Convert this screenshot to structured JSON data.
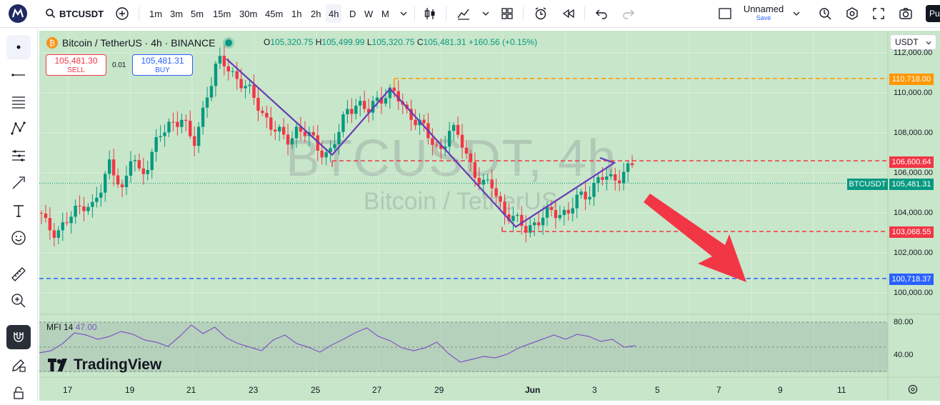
{
  "toolbar": {
    "symbol": "BTCUSDT",
    "timeframes": [
      "1m",
      "3m",
      "5m",
      "15m",
      "30m",
      "45m",
      "1h",
      "2h",
      "4h",
      "D",
      "W",
      "M"
    ],
    "active_timeframe": "4h",
    "layout_name": "Unnamed",
    "save_label": "Save",
    "publish_label": "Pu"
  },
  "legend": {
    "title": "Bitcoin / TetherUS · 4h · BINANCE",
    "o_label": "O",
    "o": "105,320.75",
    "h_label": "H",
    "h": "105,499.99",
    "l_label": "L",
    "l": "105,320.75",
    "c_label": "C",
    "c": "105,481.31",
    "change": "+160.56 (+0.15%)"
  },
  "trade": {
    "sell_price": "105,481.30",
    "sell_label": "SELL",
    "buy_price": "105,481.31",
    "buy_label": "BUY",
    "quantity": "0.01"
  },
  "watermark": {
    "symbol": "BTCUSDT, 4h",
    "name": "Bitcoin / TetherUS"
  },
  "price_axis": {
    "currency": "USDT",
    "labels": [
      "112,000.00",
      "110,000.00",
      "108,000.00",
      "106,000.00",
      "104,000.00",
      "102,000.00",
      "100,000.00"
    ],
    "tags": [
      {
        "text": "110,718.00",
        "color": "#ff9800"
      },
      {
        "text": "106,600.64",
        "color": "#f23645"
      },
      {
        "text": "105,481.31",
        "color": "#089981"
      },
      {
        "text": "103,068.55",
        "color": "#f23645"
      },
      {
        "text": "100,718.37",
        "color": "#2962ff"
      }
    ],
    "symbol_tag": "BTCUSDT"
  },
  "indicator": {
    "name": "MFI 14",
    "value": "47.00",
    "levels": [
      "80.00",
      "40.00"
    ]
  },
  "branding": "TradingView",
  "time_axis": [
    "17",
    "19",
    "21",
    "23",
    "25",
    "27",
    "29",
    "Jun",
    "3",
    "5",
    "7",
    "9",
    "11"
  ],
  "colors": {
    "up": "#089981",
    "down": "#f23645",
    "zigzag": "#673ab7",
    "background": "#c8e6c9",
    "mfi": "#7e57c2"
  },
  "chart_data": {
    "type": "candlestick",
    "title": "Bitcoin / TetherUS · 4h · BINANCE",
    "y_range": [
      99400,
      112200
    ],
    "horizontal_levels": [
      110718.0,
      106600.64,
      103068.55,
      100718.37
    ],
    "last_price": 105481.31,
    "zigzag_points": [
      {
        "x": "May 21",
        "y": 111700
      },
      {
        "x": "May 25",
        "y": 106900
      },
      {
        "x": "May 27",
        "y": 110200
      },
      {
        "x": "May 30",
        "y": 103300
      },
      {
        "x": "Jun 3",
        "y": 106500
      }
    ],
    "mfi_values": [
      37,
      40,
      50,
      65,
      62,
      56,
      60,
      67,
      63,
      55,
      52,
      46,
      60,
      76,
      64,
      73,
      58,
      50,
      45,
      40,
      55,
      62,
      50,
      45,
      38,
      48,
      56,
      65,
      72,
      60,
      54,
      44,
      40,
      44,
      52,
      36,
      24,
      28,
      32,
      30,
      35,
      44,
      50,
      56,
      62,
      56,
      63,
      60,
      53,
      56,
      45,
      47
    ],
    "mfi_levels": [
      80,
      40
    ]
  }
}
